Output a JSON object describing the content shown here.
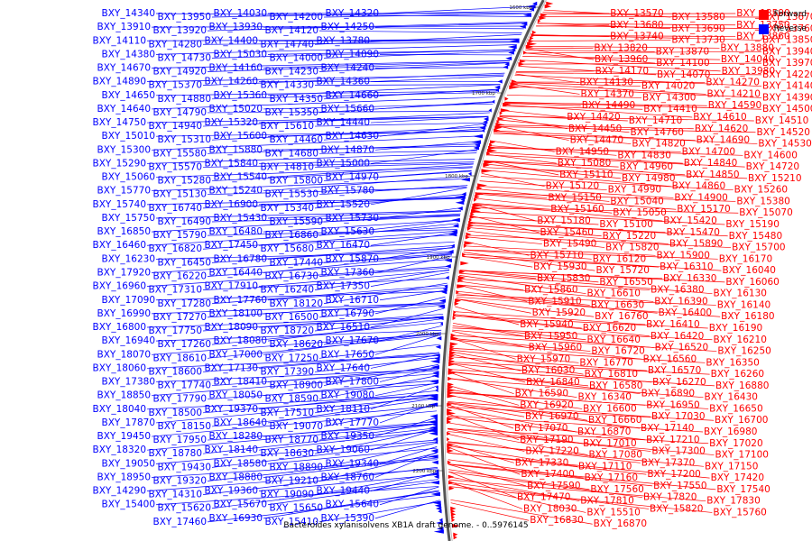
{
  "caption": "Bacteroides xylanisolvens XB1A draft genome. - 0..5976145",
  "legend": [
    {
      "label": "Forward",
      "color": "#ff0000"
    },
    {
      "label": "Reverse",
      "color": "#0000ff"
    }
  ],
  "colors": {
    "forward": "#ff0000",
    "reverse": "#0000ff",
    "backbone": "#555555"
  },
  "scale_ticks": [
    "1600 kbp",
    "1700 kbp",
    "1800 kbp",
    "1900 kbp",
    "2000 kbp",
    "2100 kbp",
    "2200 kbp"
  ],
  "forward_labels": [
    "BXY_13570",
    "BXY_13580",
    "BXY_13590",
    "BXY_13670",
    "BXY_13680",
    "BXY_13690",
    "BXY_13750",
    "BXY_13760",
    "BXY_13740",
    "BXY_13730",
    "BXY_13860",
    "BXY_13850",
    "BXY_13820",
    "BXY_13870",
    "BXY_13880",
    "BXY_13940",
    "BXY_13960",
    "BXY_14100",
    "BXY_14040",
    "BXY_13970",
    "BXY_14170",
    "BXY_14070",
    "BXY_13980",
    "BXY_14220",
    "BXY_14130",
    "BXY_14020",
    "BXY_14270",
    "BXY_14140",
    "BXY_14370",
    "BXY_14300",
    "BXY_14210",
    "BXY_14390",
    "BXY_14490",
    "BXY_14410",
    "BXY_14590",
    "BXY_14500",
    "BXY_14420",
    "BXY_14710",
    "BXY_14610",
    "BXY_14510",
    "BXY_14450",
    "BXY_14760",
    "BXY_14620",
    "BXY_14520",
    "BXY_14470",
    "BXY_14820",
    "BXY_14690",
    "BXY_14530",
    "BXY_14950",
    "BXY_14830",
    "BXY_14700",
    "BXY_14600",
    "BXY_15080",
    "BXY_14960",
    "BXY_14840",
    "BXY_14720",
    "BXY_15110",
    "BXY_14980",
    "BXY_14850",
    "BXY_15210",
    "BXY_15120",
    "BXY_14990",
    "BXY_14860",
    "BXY_15260",
    "BXY_15150",
    "BXY_15040",
    "BXY_14900",
    "BXY_15380",
    "BXY_15160",
    "BXY_15050",
    "BXY_15170",
    "BXY_15070",
    "BXY_15180",
    "BXY_15100",
    "BXY_15420",
    "BXY_15190",
    "BXY_15460",
    "BXY_15220",
    "BXY_15470",
    "BXY_15480",
    "BXY_15490",
    "BXY_15820",
    "BXY_15890",
    "BXY_15700",
    "BXY_15710",
    "BXY_16120",
    "BXY_15900",
    "BXY_16170",
    "BXY_15930",
    "BXY_15720",
    "BXY_16310",
    "BXY_16040",
    "BXY_15830",
    "BXY_16550",
    "BXY_16330",
    "BXY_16060",
    "BXY_15860",
    "BXY_16610",
    "BXY_16380",
    "BXY_16130",
    "BXY_15910",
    "BXY_16630",
    "BXY_16390",
    "BXY_16140",
    "BXY_15920",
    "BXY_16760",
    "BXY_16400",
    "BXY_16180",
    "BXY_15940",
    "BXY_16620",
    "BXY_16410",
    "BXY_16190",
    "BXY_15950",
    "BXY_16640",
    "BXY_16420",
    "BXY_16210",
    "BXY_15960",
    "BXY_16720",
    "BXY_16520",
    "BXY_16250",
    "BXY_15970",
    "BXY_16770",
    "BXY_16560",
    "BXY_16350",
    "BXY_16030",
    "BXY_16810",
    "BXY_16570",
    "BXY_16260",
    "BXY_16840",
    "BXY_16580",
    "BXY_16270",
    "BXY_16880",
    "BXY_16590",
    "BXY_16340",
    "BXY_16890",
    "BXY_16430",
    "BXY_16920",
    "BXY_16600",
    "BXY_16950",
    "BXY_16650",
    "BXY_16970",
    "BXY_16660",
    "BXY_17030",
    "BXY_16700",
    "BXY_17070",
    "BXY_16870",
    "BXY_17140",
    "BXY_16980",
    "BXY_17190",
    "BXY_17010",
    "BXY_17210",
    "BXY_17020",
    "BXY_17220",
    "BXY_17080",
    "BXY_17300",
    "BXY_17100",
    "BXY_17330",
    "BXY_17110",
    "BXY_17370",
    "BXY_17150",
    "BXY_17400",
    "BXY_17160",
    "BXY_17200",
    "BXY_17420",
    "BXY_17590",
    "BXY_17560",
    "BXY_17550",
    "BXY_17540",
    "BXY_17470",
    "BXY_17810",
    "BXY_17820",
    "BXY_17830",
    "BXY_18030",
    "BXY_15510",
    "BXY_15820",
    "BXY_15760",
    "BXY_16830",
    "BXY_16870"
  ],
  "reverse_labels": [
    "BXY_14320",
    "BXY_14200",
    "BXY_14030",
    "BXY_13950",
    "BXY_14340",
    "BXY_14250",
    "BXY_14120",
    "BXY_13930",
    "BXY_13920",
    "BXY_13910",
    "BXY_13780",
    "BXY_14740",
    "BXY_14400",
    "BXY_14280",
    "BXY_14110",
    "BXY_14090",
    "BXY_14000",
    "BXY_15030",
    "BXY_14730",
    "BXY_14380",
    "BXY_14240",
    "BXY_14230",
    "BXY_14160",
    "BXY_14920",
    "BXY_14670",
    "BXY_14360",
    "BXY_14330",
    "BXY_14260",
    "BXY_15370",
    "BXY_14890",
    "BXY_14660",
    "BXY_14350",
    "BXY_15360",
    "BXY_14880",
    "BXY_14650",
    "BXY_15660",
    "BXY_15350",
    "BXY_15020",
    "BXY_14790",
    "BXY_14640",
    "BXY_14440",
    "BXY_15610",
    "BXY_15320",
    "BXY_14940",
    "BXY_14750",
    "BXY_14630",
    "BXY_14460",
    "BXY_15600",
    "BXY_15310",
    "BXY_15010",
    "BXY_14870",
    "BXY_14680",
    "BXY_15880",
    "BXY_15580",
    "BXY_15300",
    "BXY_15000",
    "BXY_14810",
    "BXY_15840",
    "BXY_15570",
    "BXY_15290",
    "BXY_14970",
    "BXY_15800",
    "BXY_15540",
    "BXY_15280",
    "BXY_15060",
    "BXY_15780",
    "BXY_15530",
    "BXY_15240",
    "BXY_15130",
    "BXY_15770",
    "BXY_15520",
    "BXY_15340",
    "BXY_16900",
    "BXY_16740",
    "BXY_15740",
    "BXY_15730",
    "BXY_15590",
    "BXY_15430",
    "BXY_16490",
    "BXY_15750",
    "BXY_15630",
    "BXY_16860",
    "BXY_16480",
    "BXY_15790",
    "BXY_16850",
    "BXY_16470",
    "BXY_15680",
    "BXY_17450",
    "BXY_16820",
    "BXY_16460",
    "BXY_15870",
    "BXY_17440",
    "BXY_16780",
    "BXY_16450",
    "BXY_16230",
    "BXY_17360",
    "BXY_16730",
    "BXY_16440",
    "BXY_16220",
    "BXY_17920",
    "BXY_17350",
    "BXY_16240",
    "BXY_17910",
    "BXY_17310",
    "BXY_16960",
    "BXY_16710",
    "BXY_18120",
    "BXY_17760",
    "BXY_17280",
    "BXY_17090",
    "BXY_16790",
    "BXY_16500",
    "BXY_18100",
    "BXY_17270",
    "BXY_16990",
    "BXY_16510",
    "BXY_18720",
    "BXY_18090",
    "BXY_17750",
    "BXY_16800",
    "BXY_17670",
    "BXY_18620",
    "BXY_18080",
    "BXY_17260",
    "BXY_16940",
    "BXY_17650",
    "BXY_17250",
    "BXY_17000",
    "BXY_18610",
    "BXY_18070",
    "BXY_17640",
    "BXY_17390",
    "BXY_17130",
    "BXY_18600",
    "BXY_18060",
    "BXY_17800",
    "BXY_18900",
    "BXY_18410",
    "BXY_17740",
    "BXY_17380",
    "BXY_19080",
    "BXY_18590",
    "BXY_18050",
    "BXY_17790",
    "BXY_18850",
    "BXY_18110",
    "BXY_17510",
    "BXY_19370",
    "BXY_18500",
    "BXY_18040",
    "BXY_17770",
    "BXY_19070",
    "BXY_18640",
    "BXY_18150",
    "BXY_17870",
    "BXY_19350",
    "BXY_18770",
    "BXY_18280",
    "BXY_17950",
    "BXY_19450",
    "BXY_19060",
    "BXY_18630",
    "BXY_18140",
    "BXY_18780",
    "BXY_18320",
    "BXY_19340",
    "BXY_18890",
    "BXY_18580",
    "BXY_19430",
    "BXY_19050",
    "BXY_18760",
    "BXY_19210",
    "BXY_18880",
    "BXY_19320",
    "BXY_18950",
    "BXY_19440",
    "BXY_19090",
    "BXY_19360",
    "BXY_14310",
    "BXY_14290",
    "BXY_15640",
    "BXY_15650",
    "BXY_15670",
    "BXY_15620",
    "BXY_15400",
    "BXY_15390",
    "BXY_15410",
    "BXY_16930",
    "BXY_17460"
  ]
}
